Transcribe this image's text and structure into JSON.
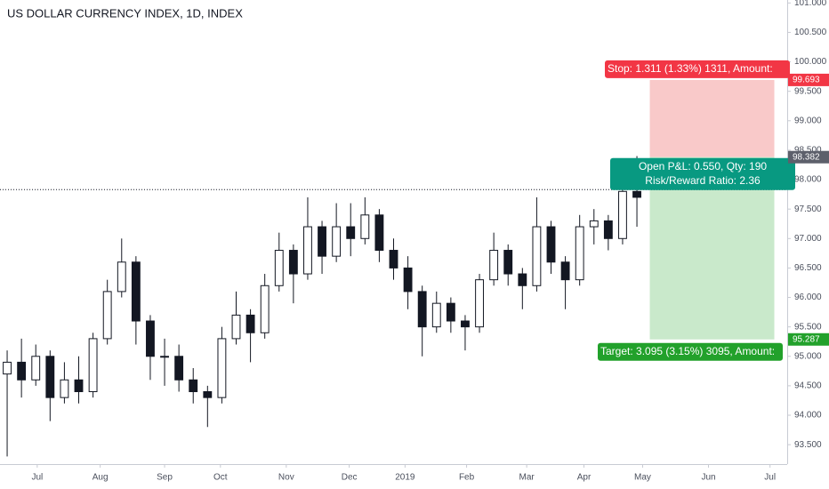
{
  "chart_data": {
    "type": "candlestick",
    "title": "US DOLLAR CURRENCY INDEX, 1D, INDEX",
    "color": "#131722",
    "open": [
      94.7,
      94.9,
      94.6,
      95.0,
      94.3,
      94.6,
      94.4,
      95.3,
      96.1,
      96.6,
      95.6,
      95.0,
      95.0,
      94.6,
      94.4,
      94.3,
      95.3,
      95.7,
      95.4,
      96.2,
      96.8,
      96.4,
      97.2,
      96.7,
      97.2,
      97.0,
      97.4,
      96.8,
      96.5,
      96.1,
      95.5,
      95.9,
      95.6,
      95.5,
      96.3,
      96.8,
      96.4,
      96.2,
      97.2,
      96.6,
      96.3,
      97.2,
      97.3,
      97.0,
      97.8
    ],
    "high": [
      95.1,
      95.3,
      95.2,
      95.1,
      94.9,
      95.0,
      95.4,
      96.3,
      97.0,
      96.7,
      95.7,
      95.3,
      95.2,
      94.8,
      94.5,
      95.5,
      96.1,
      95.8,
      96.4,
      97.1,
      96.9,
      97.7,
      97.3,
      97.6,
      97.6,
      97.7,
      97.5,
      97.0,
      96.7,
      96.2,
      96.1,
      96.0,
      95.7,
      96.4,
      97.1,
      96.9,
      96.5,
      97.7,
      97.3,
      96.7,
      97.4,
      97.5,
      97.4,
      97.9,
      98.4
    ],
    "low": [
      93.3,
      94.3,
      94.5,
      93.9,
      94.2,
      94.2,
      94.3,
      95.2,
      96.0,
      95.2,
      94.6,
      94.5,
      94.4,
      94.2,
      93.8,
      94.2,
      95.2,
      94.9,
      95.3,
      96.1,
      95.9,
      96.3,
      96.4,
      96.6,
      96.7,
      96.9,
      96.6,
      96.3,
      95.8,
      95.0,
      95.4,
      95.4,
      95.1,
      95.4,
      96.2,
      96.2,
      95.8,
      96.1,
      96.4,
      95.8,
      96.2,
      96.9,
      96.8,
      96.9,
      97.2
    ],
    "close": [
      94.9,
      94.6,
      95.0,
      94.3,
      94.6,
      94.4,
      95.3,
      96.1,
      96.6,
      95.6,
      95.0,
      95.0,
      94.6,
      94.4,
      94.3,
      95.3,
      95.7,
      95.4,
      96.2,
      96.8,
      96.4,
      97.2,
      96.7,
      97.2,
      97.0,
      97.4,
      96.8,
      96.5,
      96.1,
      95.5,
      95.9,
      95.6,
      95.5,
      96.3,
      96.8,
      96.4,
      96.2,
      97.2,
      96.6,
      96.3,
      97.2,
      97.3,
      97.0,
      97.8,
      97.7
    ],
    "xlim": [
      -0.5,
      54.5
    ],
    "xticks": [
      {
        "value": 2.1,
        "label": "Jul"
      },
      {
        "value": 6.5,
        "label": "Aug"
      },
      {
        "value": 11,
        "label": "Sep"
      },
      {
        "value": 14.9,
        "label": "Oct"
      },
      {
        "value": 19.5,
        "label": "Nov"
      },
      {
        "value": 23.9,
        "label": "Dec"
      },
      {
        "value": 27.8,
        "label": "2019"
      },
      {
        "value": 32.1,
        "label": "Feb"
      },
      {
        "value": 36.3,
        "label": "Mar"
      },
      {
        "value": 40.3,
        "label": "Apr"
      },
      {
        "value": 44.4,
        "label": "May"
      },
      {
        "value": 49,
        "label": "Jun"
      },
      {
        "value": 53.3,
        "label": "Jul"
      }
    ],
    "ylim": [
      93.17,
      101.05
    ],
    "yticks": [
      {
        "value": 93.5,
        "label": "93.500"
      },
      {
        "value": 94,
        "label": "94.000"
      },
      {
        "value": 94.5,
        "label": "94.500"
      },
      {
        "value": 95,
        "label": "95.000"
      },
      {
        "value": 95.5,
        "label": "95.500"
      },
      {
        "value": 96,
        "label": "96.000"
      },
      {
        "value": 96.5,
        "label": "96.500"
      },
      {
        "value": 97,
        "label": "97.000"
      },
      {
        "value": 97.5,
        "label": "97.500"
      },
      {
        "value": 98,
        "label": "98.000"
      },
      {
        "value": 98.5,
        "label": "98.500"
      },
      {
        "value": 99,
        "label": "99.000"
      },
      {
        "value": 99.5,
        "label": "99.500"
      },
      {
        "value": 100,
        "label": "100.000"
      },
      {
        "value": 100.5,
        "label": "100.500"
      },
      {
        "value": 101,
        "label": "101.000"
      }
    ],
    "hline": 97.83,
    "position": {
      "start": 44.9,
      "end": 53.6,
      "entry": {
        "value": 98.382,
        "label": "98.382"
      },
      "stop": {
        "value": 99.693,
        "label": "99.693"
      },
      "target": {
        "value": 95.287,
        "label": "95.287"
      },
      "stop_text": "Stop: 1.311 (1.33%) 1311, Amount:",
      "pnl_text": "Open P&L: 0.550, Qty: 190",
      "rr_text": "Risk/Reward Ratio: 2.36",
      "target_text": "Target: 3.095 (3.15%) 3095, Amount:"
    }
  }
}
